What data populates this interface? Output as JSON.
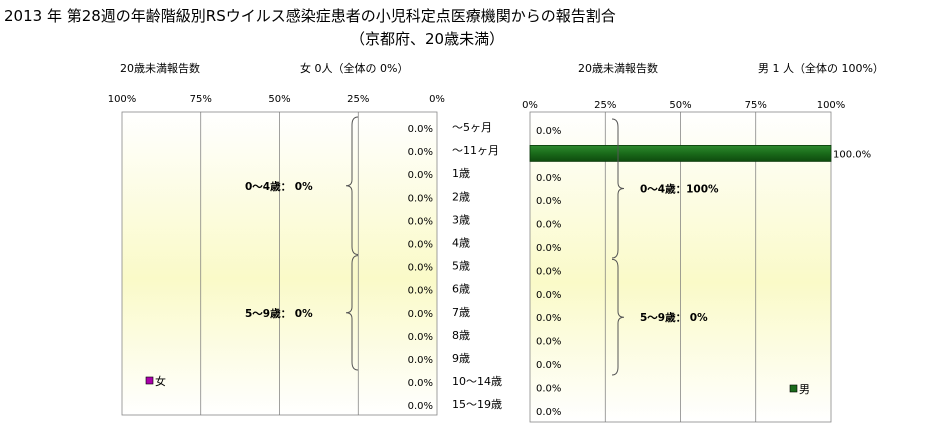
{
  "title_line1": "2013 年 第28週の年齢階級別RSウイルス感染症患者の小児科定点医療機関からの報告割合",
  "title_line2": "（京都府、20歳未満）",
  "chart_data": [
    {
      "type": "bar",
      "orientation": "horizontal",
      "direction": "right-to-left",
      "header_label": "20歳未満報告数",
      "header_summary": "女  0人（全体の   0%）",
      "legend": "女",
      "legend_color": "#aa00aa",
      "bar_color": "#1a6b1a",
      "x_ticks": [
        "100%",
        "75%",
        "50%",
        "25%",
        "0%"
      ],
      "xlim": [
        0,
        100
      ],
      "categories": [
        "～5ヶ月",
        "～11ヶ月",
        "1歳",
        "2歳",
        "3歳",
        "4歳",
        "5歳",
        "6歳",
        "7歳",
        "8歳",
        "9歳",
        "10～14歳",
        "15～19歳"
      ],
      "values": [
        0,
        0,
        0,
        0,
        0,
        0,
        0,
        0,
        0,
        0,
        0,
        0,
        0
      ],
      "value_labels": [
        "0.0%",
        "0.0%",
        "0.0%",
        "0.0%",
        "0.0%",
        "0.0%",
        "0.0%",
        "0.0%",
        "0.0%",
        "0.0%",
        "0.0%",
        "0.0%",
        "0.0%"
      ],
      "groups": [
        {
          "label": "0～4歳：  0%",
          "from": 0,
          "to": 5
        },
        {
          "label": "5～9歳：  0%",
          "from": 6,
          "to": 10
        }
      ]
    },
    {
      "type": "bar",
      "orientation": "horizontal",
      "direction": "left-to-right",
      "header_label": "20歳未満報告数",
      "header_summary": "男  1 人（全体の   100%）",
      "legend": "男",
      "legend_color": "#1a6b1a",
      "bar_color": "#1a6b1a",
      "x_ticks": [
        "0%",
        "25%",
        "50%",
        "75%",
        "100%"
      ],
      "xlim": [
        0,
        100
      ],
      "categories": [
        "～5ヶ月",
        "～11ヶ月",
        "1歳",
        "2歳",
        "3歳",
        "4歳",
        "5歳",
        "6歳",
        "7歳",
        "8歳",
        "9歳",
        "10～14歳",
        "15～19歳"
      ],
      "values": [
        0,
        100,
        0,
        0,
        0,
        0,
        0,
        0,
        0,
        0,
        0,
        0,
        0
      ],
      "value_labels": [
        "0.0%",
        "100.0%",
        "0.0%",
        "0.0%",
        "0.0%",
        "0.0%",
        "0.0%",
        "0.0%",
        "0.0%",
        "0.0%",
        "0.0%",
        "0.0%",
        "0.0%"
      ],
      "groups": [
        {
          "label": "0～4歳：100%",
          "from": 0,
          "to": 5
        },
        {
          "label": "5～9歳：  0%",
          "from": 6,
          "to": 10
        }
      ]
    }
  ]
}
